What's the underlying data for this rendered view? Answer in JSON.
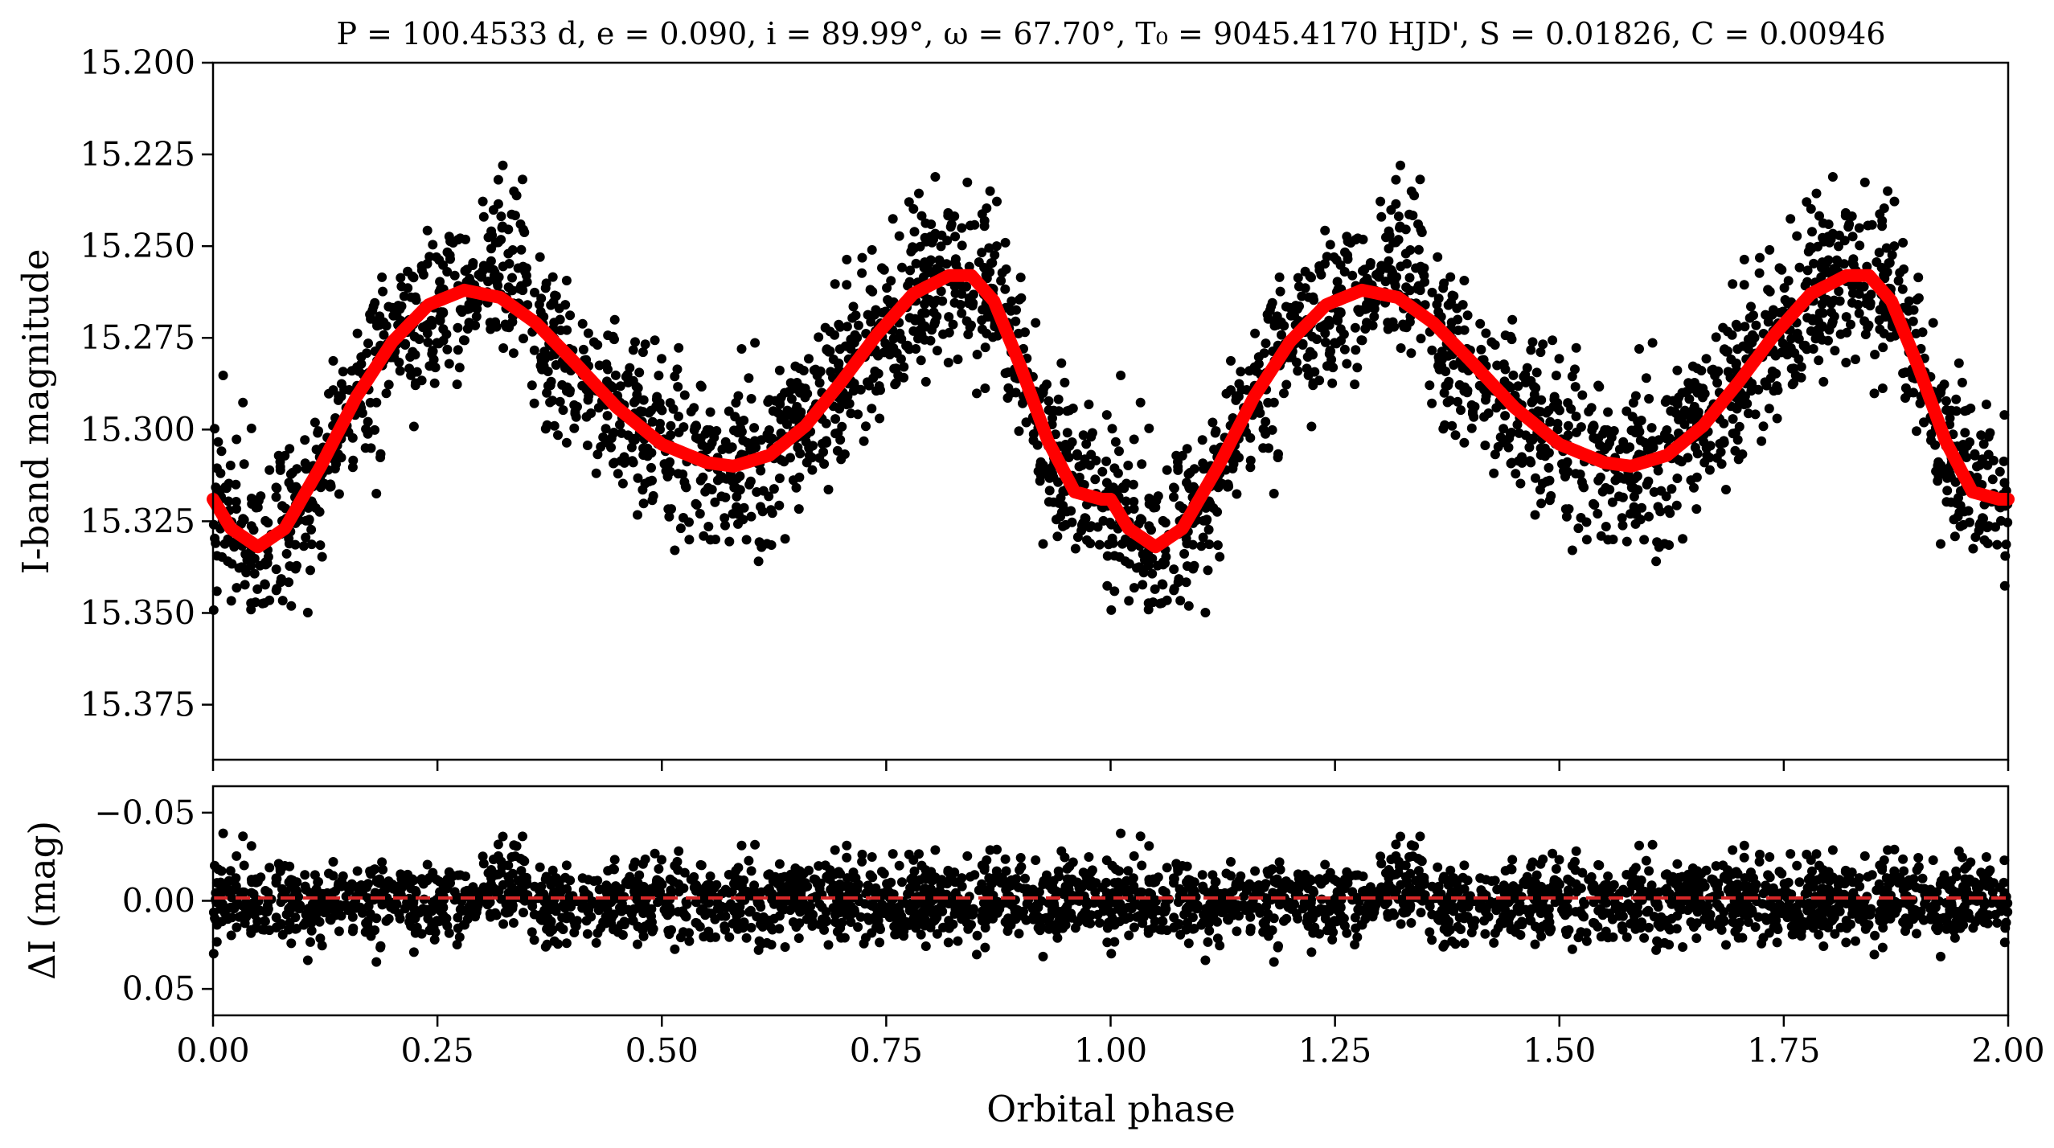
{
  "chart_data": [
    {
      "type": "scatter",
      "title": "P = 100.4533 d, e = 0.090, i = 89.99°, ω = 67.70°, T₀ = 9045.4170 HJD', S = 0.01826, C = 0.00946",
      "xlabel": "",
      "ylabel": "I-band magnitude",
      "xlim": [
        0.0,
        2.0
      ],
      "ylim": [
        15.39,
        15.2
      ],
      "y_inverted": true,
      "y_ticks": [
        "15.200",
        "15.225",
        "15.250",
        "15.275",
        "15.300",
        "15.325",
        "15.350",
        "15.375"
      ],
      "x_ticks": [
        0.0,
        0.25,
        0.5,
        0.75,
        1.0,
        1.25,
        1.5,
        1.75,
        2.0
      ],
      "point_color": "#000000",
      "series": [
        {
          "type": "line",
          "color": "#ff0000",
          "x": [
            0.0,
            0.02,
            0.05,
            0.08,
            0.12,
            0.16,
            0.2,
            0.24,
            0.28,
            0.32,
            0.36,
            0.4,
            0.45,
            0.5,
            0.55,
            0.58,
            0.62,
            0.66,
            0.7,
            0.74,
            0.78,
            0.82,
            0.845,
            0.87,
            0.9,
            0.93,
            0.96,
            0.99,
            1.0
          ],
          "y": [
            15.319,
            15.327,
            15.332,
            15.327,
            15.31,
            15.291,
            15.276,
            15.266,
            15.262,
            15.264,
            15.271,
            15.281,
            15.294,
            15.304,
            15.309,
            15.31,
            15.307,
            15.299,
            15.287,
            15.274,
            15.263,
            15.258,
            15.258,
            15.265,
            15.283,
            15.303,
            15.317,
            15.319,
            15.319
          ]
        }
      ],
      "points_description_note": ""
    },
    {
      "type": "scatter",
      "title": "",
      "xlabel": "Orbital phase",
      "ylabel": "ΔI (mag)",
      "xlim": [
        0.0,
        2.0
      ],
      "ylim": [
        0.065,
        -0.065
      ],
      "y_inverted": true,
      "y_ticks": [
        "−0.05",
        "0.00",
        "0.05"
      ],
      "x_tick_labels": [
        "0.00",
        "0.25",
        "0.50",
        "0.75",
        "1.00",
        "1.25",
        "1.50",
        "1.75",
        "2.00"
      ],
      "zero_line": {
        "y": 0.0,
        "color": "#d62728",
        "style": "dashed"
      },
      "point_color": "#000000"
    }
  ]
}
